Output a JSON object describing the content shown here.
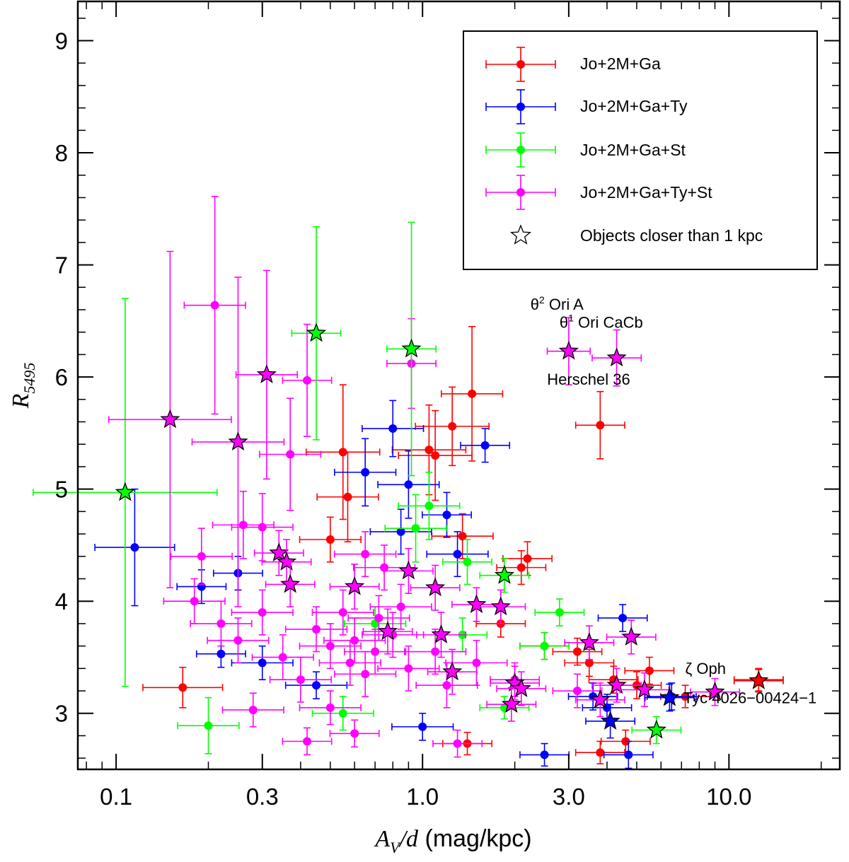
{
  "chart_data": {
    "type": "scatter",
    "xscale": "log",
    "xlim": [
      0.075,
      23
    ],
    "ylim": [
      2.5,
      9.35
    ],
    "xlabel": {
      "main": "A",
      "sub": "V",
      "rest": "/d",
      "units": " (mag/kpc)"
    },
    "ylabel": {
      "main": "R",
      "sub": "5495"
    },
    "x_ticks": [
      {
        "value": 0.1,
        "label": "0.1"
      },
      {
        "value": 0.3,
        "label": "0.3"
      },
      {
        "value": 1.0,
        "label": "1.0"
      },
      {
        "value": 3.0,
        "label": "3.0"
      },
      {
        "value": 10.0,
        "label": "10.0"
      }
    ],
    "x_minor": [
      0.08,
      0.09,
      0.2,
      0.4,
      0.5,
      0.6,
      0.7,
      0.8,
      0.9,
      2,
      4,
      5,
      6,
      7,
      8,
      9,
      20
    ],
    "y_ticks": [
      {
        "value": 3,
        "label": "3"
      },
      {
        "value": 4,
        "label": "4"
      },
      {
        "value": 5,
        "label": "5"
      },
      {
        "value": 6,
        "label": "6"
      },
      {
        "value": 7,
        "label": "7"
      },
      {
        "value": 8,
        "label": "8"
      },
      {
        "value": 9,
        "label": "9"
      }
    ],
    "legend_position": "top-right",
    "legend": [
      {
        "label": "Jo+2M+Ga",
        "color": "#ff0000",
        "marker": "circle-errorbar"
      },
      {
        "label": "Jo+2M+Ga+Ty",
        "color": "#0000ff",
        "marker": "circle-errorbar"
      },
      {
        "label": "Jo+2M+Ga+St",
        "color": "#00ff00",
        "marker": "circle-errorbar"
      },
      {
        "label": "Jo+2M+Ga+Ty+St",
        "color": "#ff00ff",
        "marker": "circle-errorbar"
      },
      {
        "label": "Objects closer than 1 kpc",
        "color": "#ffffff",
        "marker": "star"
      }
    ],
    "series": [
      {
        "name": "Jo+2M+Ga",
        "color": "#ff0000",
        "points": [
          {
            "x": 0.165,
            "y": 3.23,
            "xerr": 0.13,
            "yerr": 0.18
          },
          {
            "x": 0.55,
            "y": 5.33,
            "xerr": 0.12,
            "yerr": 0.6
          },
          {
            "x": 0.57,
            "y": 4.93,
            "xerr": 0.1,
            "yerr": 0.4
          },
          {
            "x": 1.05,
            "y": 5.35,
            "xerr": 0.12,
            "yerr": 0.4
          },
          {
            "x": 1.1,
            "y": 5.3,
            "xerr": 0.12,
            "yerr": 0.4
          },
          {
            "x": 1.25,
            "y": 5.56,
            "xerr": 0.12,
            "yerr": 0.35
          },
          {
            "x": 1.45,
            "y": 5.85,
            "xerr": 0.1,
            "yerr": 0.6
          },
          {
            "x": 3.8,
            "y": 5.57,
            "xerr": 0.08,
            "yerr": 0.3
          },
          {
            "x": 1.35,
            "y": 4.58,
            "xerr": 0.1,
            "yerr": 0.2
          },
          {
            "x": 2.2,
            "y": 4.38,
            "xerr": 0.08,
            "yerr": 0.15
          },
          {
            "x": 2.1,
            "y": 4.3,
            "xerr": 0.08,
            "yerr": 0.15
          },
          {
            "x": 0.5,
            "y": 4.55,
            "xerr": 0.1,
            "yerr": 0.2
          },
          {
            "x": 3.5,
            "y": 3.45,
            "xerr": 0.08,
            "yerr": 0.12
          },
          {
            "x": 4.2,
            "y": 3.3,
            "xerr": 0.08,
            "yerr": 0.12
          },
          {
            "x": 5.0,
            "y": 3.25,
            "xerr": 0.08,
            "yerr": 0.12
          },
          {
            "x": 5.5,
            "y": 3.38,
            "xerr": 0.08,
            "yerr": 0.12
          },
          {
            "x": 12.5,
            "y": 3.3,
            "xerr": 0.08,
            "yerr": 0.1
          },
          {
            "x": 3.8,
            "y": 2.65,
            "xerr": 0.08,
            "yerr": 0.1
          },
          {
            "x": 4.6,
            "y": 2.75,
            "xerr": 0.08,
            "yerr": 0.1
          },
          {
            "x": 1.4,
            "y": 2.73,
            "xerr": 0.08,
            "yerr": 0.1
          },
          {
            "x": 7.2,
            "y": 3.15,
            "xerr": 0.08,
            "yerr": 0.1
          },
          {
            "x": 2.5,
            "y": 3.6,
            "xerr": 0.08,
            "yerr": 0.12
          },
          {
            "x": 3.2,
            "y": 3.55,
            "xerr": 0.08,
            "yerr": 0.12
          },
          {
            "x": 1.8,
            "y": 3.8,
            "xerr": 0.08,
            "yerr": 0.12
          }
        ]
      },
      {
        "name": "Jo+2M+Ga+Ty",
        "color": "#0000ff",
        "points": [
          {
            "x": 0.115,
            "y": 4.48,
            "xerr": 0.13,
            "yerr": 0.52
          },
          {
            "x": 0.8,
            "y": 5.54,
            "xerr": 0.1,
            "yerr": 0.25
          },
          {
            "x": 1.6,
            "y": 5.39,
            "xerr": 0.08,
            "yerr": 0.15
          },
          {
            "x": 0.65,
            "y": 5.15,
            "xerr": 0.1,
            "yerr": 0.3
          },
          {
            "x": 0.9,
            "y": 5.04,
            "xerr": 0.1,
            "yerr": 0.3
          },
          {
            "x": 1.2,
            "y": 4.77,
            "xerr": 0.08,
            "yerr": 0.2
          },
          {
            "x": 0.19,
            "y": 4.13,
            "xerr": 0.08,
            "yerr": 0.15
          },
          {
            "x": 0.25,
            "y": 4.25,
            "xerr": 0.08,
            "yerr": 0.15
          },
          {
            "x": 0.22,
            "y": 3.53,
            "xerr": 0.08,
            "yerr": 0.12
          },
          {
            "x": 2.5,
            "y": 2.63,
            "xerr": 0.08,
            "yerr": 0.1
          },
          {
            "x": 4.7,
            "y": 2.63,
            "xerr": 0.08,
            "yerr": 0.12
          },
          {
            "x": 4.5,
            "y": 3.85,
            "xerr": 0.08,
            "yerr": 0.12
          },
          {
            "x": 6.5,
            "y": 3.15,
            "xerr": 0.08,
            "yerr": 0.12
          },
          {
            "x": 4.0,
            "y": 3.05,
            "xerr": 0.08,
            "yerr": 0.12
          },
          {
            "x": 3.6,
            "y": 3.15,
            "xerr": 0.08,
            "yerr": 0.12
          },
          {
            "x": 1.0,
            "y": 2.88,
            "xerr": 0.1,
            "yerr": 0.12
          },
          {
            "x": 0.45,
            "y": 3.25,
            "xerr": 0.1,
            "yerr": 0.12
          },
          {
            "x": 0.3,
            "y": 3.45,
            "xerr": 0.1,
            "yerr": 0.15
          },
          {
            "x": 0.85,
            "y": 4.62,
            "xerr": 0.1,
            "yerr": 0.2
          },
          {
            "x": 1.3,
            "y": 4.42,
            "xerr": 0.1,
            "yerr": 0.2
          }
        ]
      },
      {
        "name": "Jo+2M+Ga+St",
        "color": "#00ff00",
        "points": [
          {
            "x": 0.2,
            "y": 2.89,
            "xerr": 0.1,
            "yerr": 0.25
          },
          {
            "x": 0.95,
            "y": 4.65,
            "xerr": 0.1,
            "yerr": 0.3
          },
          {
            "x": 1.05,
            "y": 4.85,
            "xerr": 0.1,
            "yerr": 0.3
          },
          {
            "x": 1.4,
            "y": 4.35,
            "xerr": 0.08,
            "yerr": 0.2
          },
          {
            "x": 2.5,
            "y": 3.6,
            "xerr": 0.08,
            "yerr": 0.12
          },
          {
            "x": 2.8,
            "y": 3.9,
            "xerr": 0.08,
            "yerr": 0.12
          },
          {
            "x": 0.55,
            "y": 3.0,
            "xerr": 0.1,
            "yerr": 0.15
          },
          {
            "x": 1.35,
            "y": 3.7,
            "xerr": 0.08,
            "yerr": 0.15
          },
          {
            "x": 0.7,
            "y": 3.8,
            "xerr": 0.1,
            "yerr": 0.15
          },
          {
            "x": 1.85,
            "y": 3.05,
            "xerr": 0.08,
            "yerr": 0.1
          }
        ]
      },
      {
        "name": "Jo+2M+Ga+Ty+St",
        "color": "#ff00ff",
        "points": [
          {
            "x": 0.21,
            "y": 6.64,
            "xerr": 0.1,
            "yerr": 0.97
          },
          {
            "x": 0.42,
            "y": 5.97,
            "xerr": 0.08,
            "yerr": 0.5
          },
          {
            "x": 0.37,
            "y": 5.31,
            "xerr": 0.1,
            "yerr": 0.5
          },
          {
            "x": 0.92,
            "y": 6.12,
            "xerr": 0.08,
            "yerr": 0.4
          },
          {
            "x": 0.19,
            "y": 4.4,
            "xerr": 0.1,
            "yerr": 0.25
          },
          {
            "x": 0.26,
            "y": 4.68,
            "xerr": 0.1,
            "yerr": 0.3
          },
          {
            "x": 0.3,
            "y": 4.66,
            "xerr": 0.1,
            "yerr": 0.3
          },
          {
            "x": 0.18,
            "y": 4.0,
            "xerr": 0.1,
            "yerr": 0.2
          },
          {
            "x": 0.28,
            "y": 3.03,
            "xerr": 0.1,
            "yerr": 0.15
          },
          {
            "x": 0.42,
            "y": 2.75,
            "xerr": 0.08,
            "yerr": 0.12
          },
          {
            "x": 0.6,
            "y": 2.82,
            "xerr": 0.08,
            "yerr": 0.12
          },
          {
            "x": 1.3,
            "y": 2.73,
            "xerr": 0.08,
            "yerr": 0.12
          },
          {
            "x": 0.65,
            "y": 4.42,
            "xerr": 0.1,
            "yerr": 0.2
          },
          {
            "x": 0.75,
            "y": 4.3,
            "xerr": 0.1,
            "yerr": 0.2
          },
          {
            "x": 0.55,
            "y": 3.9,
            "xerr": 0.1,
            "yerr": 0.2
          },
          {
            "x": 0.7,
            "y": 3.55,
            "xerr": 0.1,
            "yerr": 0.2
          },
          {
            "x": 0.6,
            "y": 3.65,
            "xerr": 0.1,
            "yerr": 0.2
          },
          {
            "x": 0.8,
            "y": 3.7,
            "xerr": 0.1,
            "yerr": 0.2
          },
          {
            "x": 0.9,
            "y": 3.4,
            "xerr": 0.1,
            "yerr": 0.2
          },
          {
            "x": 0.5,
            "y": 3.6,
            "xerr": 0.1,
            "yerr": 0.2
          },
          {
            "x": 0.45,
            "y": 3.75,
            "xerr": 0.1,
            "yerr": 0.2
          },
          {
            "x": 0.65,
            "y": 3.35,
            "xerr": 0.1,
            "yerr": 0.2
          },
          {
            "x": 1.1,
            "y": 3.55,
            "xerr": 0.1,
            "yerr": 0.2
          },
          {
            "x": 1.5,
            "y": 3.45,
            "xerr": 0.1,
            "yerr": 0.2
          },
          {
            "x": 0.35,
            "y": 3.5,
            "xerr": 0.1,
            "yerr": 0.2
          },
          {
            "x": 0.4,
            "y": 3.3,
            "xerr": 0.1,
            "yerr": 0.2
          },
          {
            "x": 0.58,
            "y": 3.45,
            "xerr": 0.1,
            "yerr": 0.2
          },
          {
            "x": 0.72,
            "y": 3.85,
            "xerr": 0.1,
            "yerr": 0.2
          },
          {
            "x": 0.85,
            "y": 3.95,
            "xerr": 0.1,
            "yerr": 0.2
          },
          {
            "x": 1.2,
            "y": 3.25,
            "xerr": 0.1,
            "yerr": 0.2
          },
          {
            "x": 2.0,
            "y": 3.3,
            "xerr": 0.08,
            "yerr": 0.15
          },
          {
            "x": 3.2,
            "y": 3.2,
            "xerr": 0.08,
            "yerr": 0.15
          },
          {
            "x": 0.25,
            "y": 3.65,
            "xerr": 0.1,
            "yerr": 0.2
          },
          {
            "x": 0.22,
            "y": 3.8,
            "xerr": 0.1,
            "yerr": 0.2
          },
          {
            "x": 0.3,
            "y": 3.9,
            "xerr": 0.1,
            "yerr": 0.2
          },
          {
            "x": 0.5,
            "y": 3.05,
            "xerr": 0.1,
            "yerr": 0.15
          }
        ]
      }
    ],
    "stars": [
      {
        "x": 0.107,
        "y": 4.97,
        "xerr": 0.3,
        "yerr": 1.73,
        "color": "#00ff00",
        "errcolor": "#00ff00"
      },
      {
        "x": 0.15,
        "y": 5.62,
        "xerr": 0.2,
        "yerr": 1.5,
        "color": "#ff00ff",
        "errcolor": "#ff00ff"
      },
      {
        "x": 0.25,
        "y": 5.42,
        "xerr": 0.15,
        "yerr": 1.47,
        "color": "#ff00ff",
        "errcolor": "#ff00ff"
      },
      {
        "x": 0.31,
        "y": 6.02,
        "xerr": 0.1,
        "yerr": 0.93,
        "color": "#ff00ff",
        "errcolor": "#ff00ff"
      },
      {
        "x": 0.45,
        "y": 6.39,
        "xerr": 0.08,
        "yerr": 0.95,
        "color": "#00ff00",
        "errcolor": "#00ff00"
      },
      {
        "x": 0.92,
        "y": 6.25,
        "xerr": 0.08,
        "yerr": 1.13,
        "color": "#00ff00",
        "errcolor": "#00ff00"
      },
      {
        "x": 3.0,
        "y": 6.23,
        "xerr": 0.07,
        "yerr": 0.3,
        "color": "#ff00ff",
        "errcolor": "#ff00ff"
      },
      {
        "x": 4.3,
        "y": 6.17,
        "xerr": 0.08,
        "yerr": 0.25,
        "color": "#ff00ff",
        "errcolor": "#ff00ff"
      },
      {
        "x": 0.34,
        "y": 4.43,
        "xerr": 0.08,
        "yerr": 0.2,
        "color": "#ff00ff",
        "errcolor": "#ff00ff"
      },
      {
        "x": 0.36,
        "y": 4.35,
        "xerr": 0.08,
        "yerr": 0.2,
        "color": "#ff00ff",
        "errcolor": "#ff00ff"
      },
      {
        "x": 0.37,
        "y": 4.15,
        "xerr": 0.08,
        "yerr": 0.2,
        "color": "#ff00ff",
        "errcolor": "#ff00ff"
      },
      {
        "x": 0.6,
        "y": 4.13,
        "xerr": 0.08,
        "yerr": 0.2,
        "color": "#ff00ff",
        "errcolor": "#ff00ff"
      },
      {
        "x": 0.9,
        "y": 4.27,
        "xerr": 0.08,
        "yerr": 0.2,
        "color": "#ff00ff",
        "errcolor": "#ff00ff"
      },
      {
        "x": 1.1,
        "y": 4.12,
        "xerr": 0.08,
        "yerr": 0.2,
        "color": "#ff00ff",
        "errcolor": "#ff00ff"
      },
      {
        "x": 1.85,
        "y": 4.23,
        "xerr": 0.08,
        "yerr": 0.15,
        "color": "#00ff00",
        "errcolor": "#00ff00"
      },
      {
        "x": 1.5,
        "y": 3.97,
        "xerr": 0.08,
        "yerr": 0.15,
        "color": "#ff00ff",
        "errcolor": "#ff00ff"
      },
      {
        "x": 1.8,
        "y": 3.95,
        "xerr": 0.08,
        "yerr": 0.15,
        "color": "#ff00ff",
        "errcolor": "#ff00ff"
      },
      {
        "x": 0.77,
        "y": 3.73,
        "xerr": 0.08,
        "yerr": 0.2,
        "color": "#ff00ff",
        "errcolor": "#ff00ff"
      },
      {
        "x": 1.15,
        "y": 3.7,
        "xerr": 0.08,
        "yerr": 0.2,
        "color": "#ff00ff",
        "errcolor": "#ff00ff"
      },
      {
        "x": 1.25,
        "y": 3.37,
        "xerr": 0.08,
        "yerr": 0.2,
        "color": "#ff00ff",
        "errcolor": "#ff00ff"
      },
      {
        "x": 3.5,
        "y": 3.63,
        "xerr": 0.08,
        "yerr": 0.15,
        "color": "#ff00ff",
        "errcolor": "#ff00ff"
      },
      {
        "x": 4.8,
        "y": 3.68,
        "xerr": 0.08,
        "yerr": 0.15,
        "color": "#ff00ff",
        "errcolor": "#ff00ff"
      },
      {
        "x": 2.0,
        "y": 3.27,
        "xerr": 0.08,
        "yerr": 0.15,
        "color": "#ff00ff",
        "errcolor": "#ff00ff"
      },
      {
        "x": 2.1,
        "y": 3.22,
        "xerr": 0.08,
        "yerr": 0.15,
        "color": "#ff00ff",
        "errcolor": "#ff00ff"
      },
      {
        "x": 1.95,
        "y": 3.08,
        "xerr": 0.08,
        "yerr": 0.15,
        "color": "#ff00ff",
        "errcolor": "#ff00ff"
      },
      {
        "x": 4.3,
        "y": 3.25,
        "xerr": 0.08,
        "yerr": 0.15,
        "color": "#ff00ff",
        "errcolor": "#ff00ff"
      },
      {
        "x": 3.8,
        "y": 3.12,
        "xerr": 0.08,
        "yerr": 0.15,
        "color": "#ff00ff",
        "errcolor": "#ff00ff"
      },
      {
        "x": 5.3,
        "y": 3.21,
        "xerr": 0.08,
        "yerr": 0.15,
        "color": "#ff00ff",
        "errcolor": "#ff00ff"
      },
      {
        "x": 4.1,
        "y": 2.93,
        "xerr": 0.08,
        "yerr": 0.15,
        "color": "#0000ff",
        "errcolor": "#0000ff"
      },
      {
        "x": 5.8,
        "y": 2.85,
        "xerr": 0.08,
        "yerr": 0.12,
        "color": "#00ff00",
        "errcolor": "#00ff00"
      },
      {
        "x": 6.4,
        "y": 3.14,
        "xerr": 0.08,
        "yerr": 0.12,
        "color": "#0000ff",
        "errcolor": "#0000ff"
      },
      {
        "x": 9.0,
        "y": 3.19,
        "xerr": 0.08,
        "yerr": 0.12,
        "color": "#ff00ff",
        "errcolor": "#ff00ff"
      },
      {
        "x": 12.5,
        "y": 3.29,
        "xerr": 0.08,
        "yerr": 0.1,
        "color": "#ff0000",
        "errcolor": "#ff0000"
      }
    ],
    "annotations": [
      {
        "id": "theta2",
        "base": "θ",
        "sup": "2",
        "rest": " Ori A",
        "x": 2.25,
        "y": 6.6
      },
      {
        "id": "theta1",
        "base": "θ",
        "sup": "1",
        "rest": " Ori CaCb",
        "x": 2.8,
        "y": 6.44
      },
      {
        "id": "herschel",
        "text": "Herschel 36",
        "x": 2.55,
        "y": 5.93
      },
      {
        "id": "zeta",
        "text": "ζ Oph",
        "x": 7.2,
        "y": 3.35
      },
      {
        "id": "tyc",
        "text": "Tyc 4026−00424−1",
        "x": 7.1,
        "y": 3.09
      }
    ]
  }
}
